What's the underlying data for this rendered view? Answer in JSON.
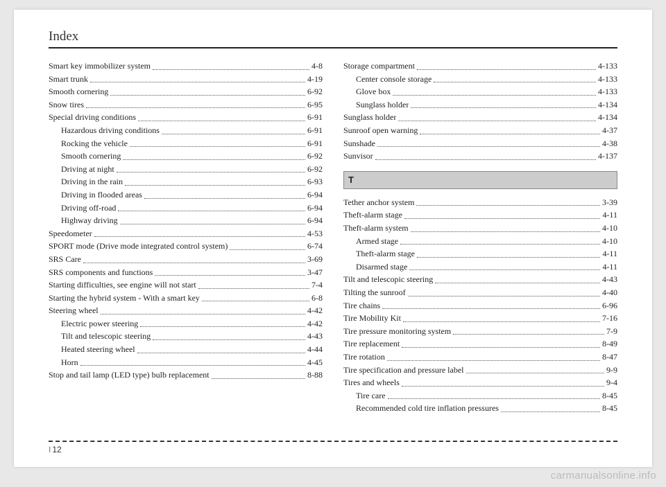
{
  "header": {
    "title": "Index"
  },
  "left_col": [
    {
      "label": "Smart key immobilizer system",
      "page": "4-8",
      "indent": 0
    },
    {
      "label": "Smart trunk",
      "page": "4-19",
      "indent": 0
    },
    {
      "label": "Smooth cornering",
      "page": "6-92",
      "indent": 0
    },
    {
      "label": "Snow tires",
      "page": "6-95",
      "indent": 0
    },
    {
      "label": "Special driving conditions",
      "page": "6-91",
      "indent": 0
    },
    {
      "label": "Hazardous driving conditions",
      "page": "6-91",
      "indent": 1
    },
    {
      "label": "Rocking the vehicle",
      "page": "6-91",
      "indent": 1
    },
    {
      "label": "Smooth cornering",
      "page": "6-92",
      "indent": 1
    },
    {
      "label": "Driving at night",
      "page": "6-92",
      "indent": 1
    },
    {
      "label": "Driving in the rain",
      "page": "6-93",
      "indent": 1
    },
    {
      "label": "Driving in flooded areas",
      "page": "6-94",
      "indent": 1
    },
    {
      "label": "Driving off-road",
      "page": "6-94",
      "indent": 1
    },
    {
      "label": "Highway driving",
      "page": "6-94",
      "indent": 1
    },
    {
      "label": "Speedometer",
      "page": "4-53",
      "indent": 0
    },
    {
      "label": "SPORT mode (Drive mode integrated control system)",
      "page": "6-74",
      "indent": 0
    },
    {
      "label": "SRS Care",
      "page": "3-69",
      "indent": 0
    },
    {
      "label": "SRS components and functions",
      "page": "3-47",
      "indent": 0
    },
    {
      "label": "Starting difficulties, see engine will not start",
      "page": "7-4",
      "indent": 0
    },
    {
      "label": "Starting the hybrid system - With a smart key",
      "page": "6-8",
      "indent": 0
    },
    {
      "label": "Steering wheel",
      "page": "4-42",
      "indent": 0
    },
    {
      "label": "Electric power steering",
      "page": "4-42",
      "indent": 1
    },
    {
      "label": "Tilt and telescopic steering",
      "page": "4-43",
      "indent": 1
    },
    {
      "label": "Heated steering wheel",
      "page": "4-44",
      "indent": 1
    },
    {
      "label": "Horn",
      "page": "4-45",
      "indent": 1
    },
    {
      "label": "Stop and tail lamp (LED type) bulb replacement",
      "page": "8-88",
      "indent": 0
    }
  ],
  "right_col_top": [
    {
      "label": "Storage compartment",
      "page": "4-133",
      "indent": 0
    },
    {
      "label": "Center console storage",
      "page": "4-133",
      "indent": 1
    },
    {
      "label": "Glove box",
      "page": "4-133",
      "indent": 1
    },
    {
      "label": "Sunglass holder",
      "page": "4-134",
      "indent": 1
    },
    {
      "label": "Sunglass holder",
      "page": "4-134",
      "indent": 0
    },
    {
      "label": "Sunroof open warning",
      "page": "4-37",
      "indent": 0
    },
    {
      "label": "Sunshade",
      "page": "4-38",
      "indent": 0
    },
    {
      "label": "Sunvisor",
      "page": "4-137",
      "indent": 0
    }
  ],
  "section_t": {
    "letter": "T"
  },
  "right_col_t": [
    {
      "label": "Tether anchor system",
      "page": "3-39",
      "indent": 0
    },
    {
      "label": "Theft-alarm stage",
      "page": "4-11",
      "indent": 0
    },
    {
      "label": "Theft-alarm system",
      "page": "4-10",
      "indent": 0
    },
    {
      "label": "Armed stage",
      "page": "4-10",
      "indent": 1
    },
    {
      "label": "Theft-alarm stage",
      "page": "4-11",
      "indent": 1
    },
    {
      "label": "Disarmed stage",
      "page": "4-11",
      "indent": 1
    },
    {
      "label": "Tilt and telescopic steering",
      "page": "4-43",
      "indent": 0
    },
    {
      "label": "Tilting the sunroof",
      "page": "4-40",
      "indent": 0
    },
    {
      "label": "Tire chains",
      "page": "6-96",
      "indent": 0
    },
    {
      "label": "Tire Mobility Kit",
      "page": "7-16",
      "indent": 0
    },
    {
      "label": "Tire pressure monitoring system",
      "page": "7-9",
      "indent": 0
    },
    {
      "label": "Tire replacement",
      "page": "8-49",
      "indent": 0
    },
    {
      "label": "Tire rotation",
      "page": "8-47",
      "indent": 0
    },
    {
      "label": "Tire specification and pressure label",
      "page": "9-9",
      "indent": 0
    },
    {
      "label": "Tires and wheels",
      "page": "9-4",
      "indent": 0
    },
    {
      "label": "Tire care",
      "page": "8-45",
      "indent": 1
    },
    {
      "label": "Recommended cold tire inflation pressures",
      "page": "8-45",
      "indent": 1
    }
  ],
  "footer": {
    "chapter": "I",
    "page": "12"
  },
  "watermark": "carmanualsonline.info",
  "style": {
    "background_color": "#ffffff",
    "page_bg": "#e8e8e8",
    "text_color": "#222222",
    "rule_color": "#222222",
    "section_bg": "#cccccc",
    "section_border": "#888888",
    "watermark_color": "#bbbbbb",
    "body_font_size_pt": 9,
    "header_font_size_pt": 14,
    "line_height": 1.55
  }
}
